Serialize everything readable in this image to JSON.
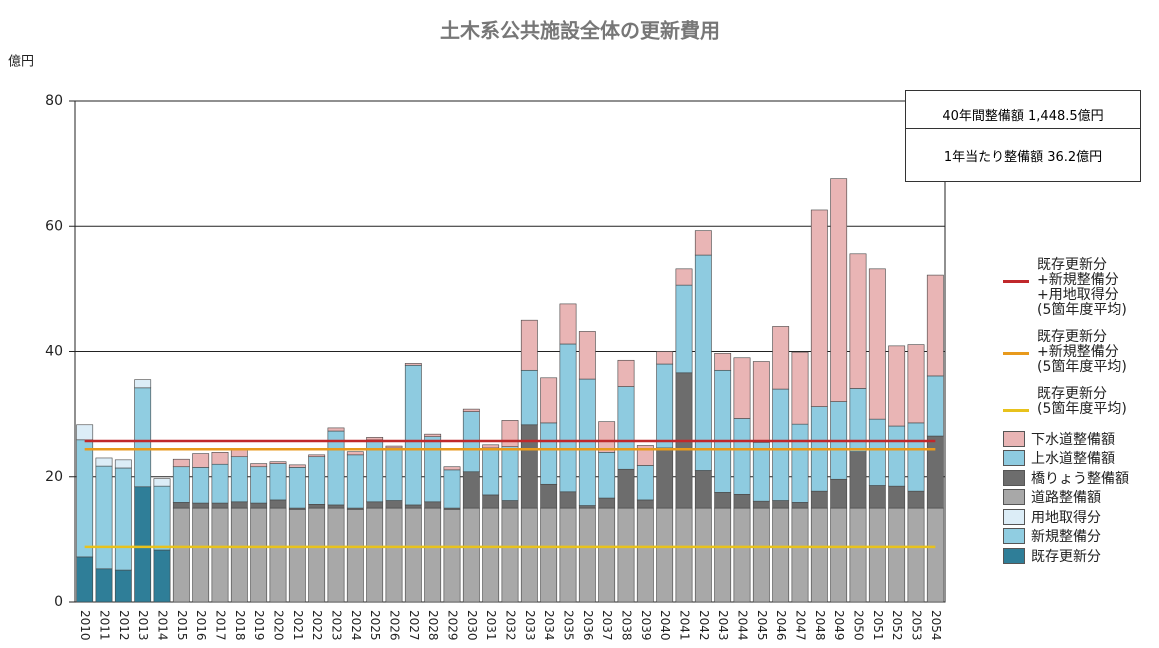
{
  "chart_data": {
    "type": "bar",
    "title": "土木系公共施設全体の更新費用",
    "ylabel": "億円",
    "annotations": [
      "40年間整備額  1,448.5億円",
      "1年当たり整備額  36.2億円"
    ],
    "categories": [
      "2010",
      "2011",
      "2012",
      "2013",
      "2014",
      "2015",
      "2016",
      "2017",
      "2018",
      "2019",
      "2020",
      "2021",
      "2022",
      "2023",
      "2024",
      "2025",
      "2026",
      "2027",
      "2028",
      "2029",
      "2030",
      "2031",
      "2032",
      "2033",
      "2034",
      "2035",
      "2036",
      "2037",
      "2038",
      "2039",
      "2040",
      "2041",
      "2042",
      "2043",
      "2044",
      "2045",
      "2046",
      "2047",
      "2048",
      "2049",
      "2050",
      "2051",
      "2052",
      "2053",
      "2054"
    ],
    "ylim": [
      0,
      80
    ],
    "yticks": [
      0,
      20,
      40,
      60,
      80
    ],
    "grid": true,
    "stacked": true,
    "lines": [
      {
        "name": "既存更新分\n+新規整備分\n+用地取得分\n(5箇年度平均)",
        "color": "#c0282b",
        "value": 25.7
      },
      {
        "name": "既存更新分\n+新規整備分\n(5箇年度平均)",
        "color": "#e89a1c",
        "value": 24.4
      },
      {
        "name": "既存更新分\n(5箇年度平均)",
        "color": "#e8c21c",
        "value": 8.8
      }
    ],
    "series": [
      {
        "name": "下水道整備額",
        "color": "#e9b5b5",
        "values": [
          null,
          null,
          null,
          null,
          null,
          1.2,
          2.2,
          1.9,
          1.3,
          0.5,
          0.3,
          0.4,
          0.3,
          0.5,
          0.5,
          0.4,
          0.3,
          0.3,
          0.4,
          0.5,
          0.4,
          0.5,
          4.2,
          8.0,
          7.2,
          6.4,
          7.6,
          4.9,
          4.2,
          3.2,
          2.0,
          2.6,
          3.9,
          2.7,
          9.7,
          12.9,
          10.0,
          11.5,
          31.4,
          35.6,
          21.5,
          24.0,
          12.8,
          12.5,
          16.1
        ]
      },
      {
        "name": "上水道整備額",
        "color": "#8ecbe0",
        "values": [
          null,
          null,
          null,
          null,
          null,
          5.7,
          5.7,
          6.2,
          7.2,
          5.8,
          5.8,
          6.5,
          7.6,
          11.8,
          8.5,
          9.9,
          8.4,
          22.3,
          10.4,
          6.1,
          9.6,
          7.5,
          8.6,
          8.7,
          9.8,
          23.6,
          20.2,
          7.3,
          13.2,
          5.5,
          13.4,
          14.0,
          34.4,
          19.5,
          12.1,
          9.4,
          17.8,
          12.5,
          13.5,
          12.4,
          10.1,
          10.6,
          9.6,
          10.9,
          9.6
        ]
      },
      {
        "name": "橋りょう整備額",
        "color": "#6d6d6d",
        "values": [
          null,
          null,
          null,
          null,
          null,
          0.9,
          0.8,
          0.8,
          1.0,
          0.8,
          1.3,
          0.2,
          0.6,
          0.5,
          0.2,
          1.0,
          1.2,
          0.5,
          1.0,
          0.2,
          5.8,
          2.1,
          1.2,
          13.3,
          3.8,
          2.6,
          0.4,
          1.6,
          6.2,
          1.3,
          9.6,
          21.6,
          6.0,
          2.5,
          2.2,
          1.1,
          1.2,
          0.9,
          2.7,
          4.6,
          9.0,
          3.6,
          3.5,
          2.7,
          11.5
        ]
      },
      {
        "name": "道路整備額",
        "color": "#a8a8a8",
        "values": [
          null,
          null,
          null,
          null,
          null,
          15,
          15,
          15,
          15,
          15,
          15,
          14.8,
          15,
          15,
          14.8,
          15,
          15,
          15,
          15,
          14.8,
          15,
          15,
          15,
          15,
          15,
          15,
          15,
          15,
          15,
          15,
          15,
          15,
          15,
          15,
          15,
          15,
          15,
          15,
          15,
          15,
          15,
          15,
          15,
          15,
          15
        ]
      },
      {
        "name": "用地取得分",
        "color": "#dcedf7",
        "values": [
          2.4,
          1.3,
          1.3,
          1.3,
          1.2,
          null,
          null,
          null,
          null,
          null,
          null,
          null,
          null,
          null,
          null,
          null,
          null,
          null,
          null,
          null,
          null,
          null,
          null,
          null,
          null,
          null,
          null,
          null,
          null,
          null,
          null,
          null,
          null,
          null,
          null,
          null,
          null,
          null,
          null,
          null,
          null,
          null,
          null,
          null,
          null
        ]
      },
      {
        "name": "新規整備分",
        "color": "#90cde1",
        "values": [
          18.7,
          16.4,
          16.3,
          15.8,
          10.2,
          null,
          null,
          null,
          null,
          null,
          null,
          null,
          null,
          null,
          null,
          null,
          null,
          null,
          null,
          null,
          null,
          null,
          null,
          null,
          null,
          null,
          null,
          null,
          null,
          null,
          null,
          null,
          null,
          null,
          null,
          null,
          null,
          null,
          null,
          null,
          null,
          null,
          null,
          null,
          null
        ]
      },
      {
        "name": "既存更新分",
        "color": "#2f7e98",
        "values": [
          7.2,
          5.3,
          5.1,
          18.4,
          8.3,
          null,
          null,
          null,
          null,
          null,
          null,
          null,
          null,
          null,
          null,
          null,
          null,
          null,
          null,
          null,
          null,
          null,
          null,
          null,
          null,
          null,
          null,
          null,
          null,
          null,
          null,
          null,
          null,
          null,
          null,
          null,
          null,
          null,
          null,
          null,
          null,
          null,
          null,
          null,
          null
        ]
      }
    ]
  }
}
